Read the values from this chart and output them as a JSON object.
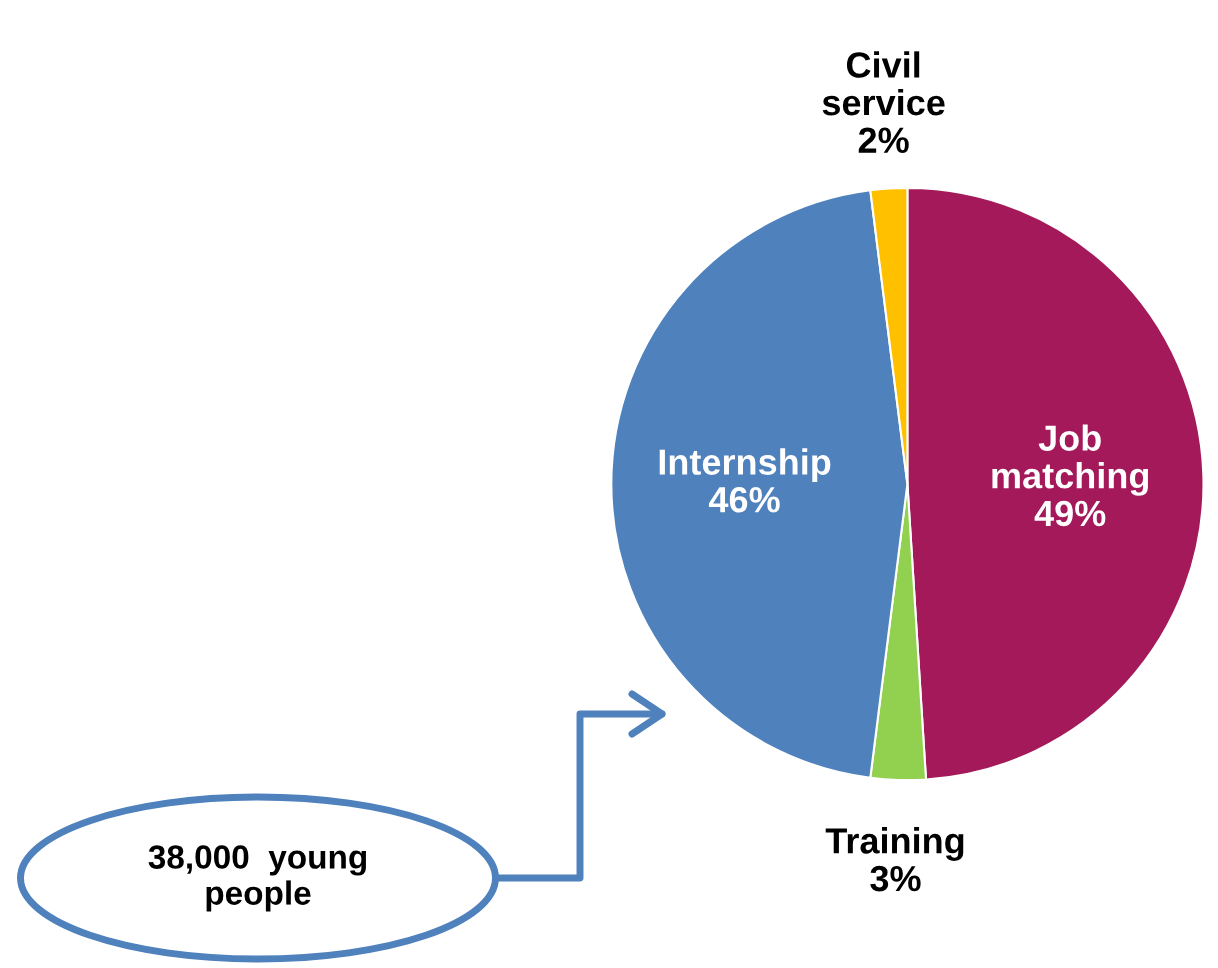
{
  "chart_data": {
    "type": "pie",
    "categories": [
      "Job\nmatching",
      "Training",
      "Internship",
      "Civil\nservice"
    ],
    "values": [
      49,
      3,
      46,
      2
    ],
    "colors": [
      "#a4195a",
      "#92d050",
      "#4f81bd",
      "#ffc000"
    ],
    "value_labels": [
      "49%",
      "3%",
      "46%",
      "2%"
    ],
    "legend": false,
    "annotations": [
      "38,000  young\npeople"
    ]
  }
}
